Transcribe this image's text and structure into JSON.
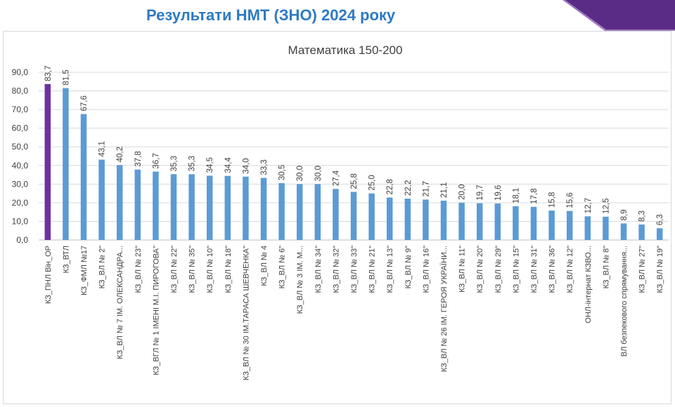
{
  "page": {
    "title": "Результати НМТ (ЗНО) 2024 року"
  },
  "colors": {
    "title": "#2e7ac4",
    "bar": "#5b9bd5",
    "bar_highlight": "#7030a0",
    "corner_dark": "#5b2c86",
    "corner_light": "#9d7bbf",
    "grid": "#d9d9d9",
    "text": "#404040"
  },
  "chart_data": {
    "type": "bar",
    "title": "Математика 150-200",
    "xlabel": "",
    "ylabel": "",
    "ylim": [
      0,
      90
    ],
    "yticks": [
      "0,0",
      "10,0",
      "20,0",
      "30,0",
      "40,0",
      "50,0",
      "60,0",
      "70,0",
      "80,0",
      "90,0"
    ],
    "grid": "horizontal",
    "highlight_index": 0,
    "categories": [
      "КЗ_ПНЛ Він_ОР",
      "КЗ_ВТЛ",
      "КЗ_ФМЛ №17",
      "КЗ_ВЛ № 2\"",
      "КЗ_ВЛ № 7 ІМ. ОЛЕКСАНДРА...",
      "КЗ_ВЛ № 23\"",
      "КЗ_ВГЛ № 1 ІМЕНІ М.І. ПИРОГОВА\"",
      "КЗ_ВЛ № 22\"",
      "КЗ_ВЛ № 35\"",
      "КЗ_ВЛ № 10\"",
      "КЗ_ВЛ № 18\"",
      "КЗ_ВЛ № 30 ІМ.ТАРАСА ШЕВЧЕНКА\"",
      "КЗ_ВЛ № 4",
      "КЗ_ВЛ № 6\"",
      "КЗ_ВЛ № 3 ІМ. М...",
      "КЗ_ВЛ № 34\"",
      "КЗ_ВЛ № 32\"",
      "КЗ_ВЛ № 33\"",
      "КЗ_ВЛ № 21\"",
      "КЗ_ВЛ № 13\"",
      "КЗ_ВЛ № 9\"",
      "КЗ_ВЛ № 16\"",
      "КЗ_ВЛ № 26 ІМ. ГЕРОЯ УКРАЇНИ...",
      "КЗ_ВЛ № 11\"",
      "КЗ_ВЛ № 20\"",
      "КЗ_ВЛ № 29\"",
      "КЗ_ВЛ № 15\"",
      "КЗ_ВЛ № 31\"",
      "КЗ_ВЛ № 36\"",
      "КЗ_ВЛ № 12\"",
      "ОНЛ-інтернат КЗВО...",
      "КЗ_ВЛ № 8\"",
      "ВЛ безпекового спрямування...",
      "КЗ_ВЛ № 27\"",
      "КЗ_ВЛ № 19\""
    ],
    "values": [
      83.7,
      81.5,
      67.6,
      43.1,
      40.2,
      37.8,
      36.7,
      35.3,
      35.3,
      34.5,
      34.4,
      34.0,
      33.3,
      30.5,
      30.0,
      30.0,
      27.4,
      25.8,
      25.0,
      22.8,
      22.2,
      21.7,
      21.1,
      20.0,
      19.7,
      19.6,
      18.1,
      17.8,
      15.8,
      15.6,
      12.7,
      12.5,
      8.9,
      8.3,
      6.3
    ],
    "value_labels": [
      "83,7",
      "81,5",
      "67,6",
      "43,1",
      "40,2",
      "37,8",
      "36,7",
      "35,3",
      "35,3",
      "34,5",
      "34,4",
      "34,0",
      "33,3",
      "30,5",
      "30,0",
      "30,0",
      "27,4",
      "25,8",
      "25,0",
      "22,8",
      "22,2",
      "21,7",
      "21,1",
      "20,0",
      "19,7",
      "19,6",
      "18,1",
      "17,8",
      "15,8",
      "15,6",
      "12,7",
      "12,5",
      "8,9",
      "8,3",
      "6,3"
    ]
  }
}
